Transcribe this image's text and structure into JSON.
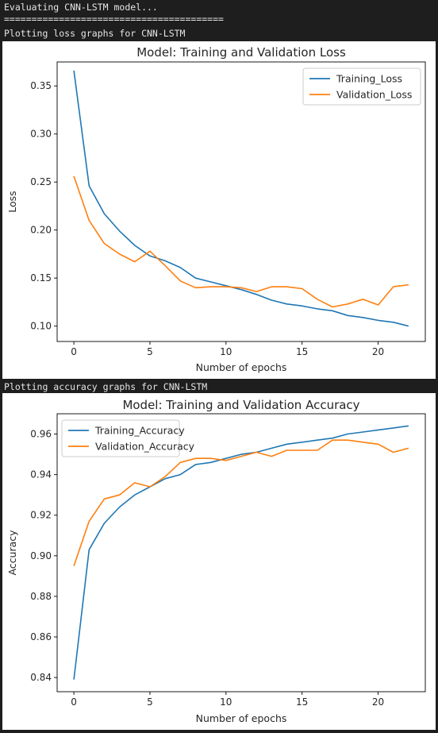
{
  "console": {
    "line1": "Evaluating CNN-LSTM model...",
    "line2": "========================================",
    "line3": "Plotting loss graphs for CNN-LSTM",
    "line4": "Plotting accuracy graphs for CNN-LSTM"
  },
  "chart_data": [
    {
      "type": "line",
      "title": "Model: Training and Validation Loss",
      "xlabel": "Number of epochs",
      "ylabel": "Loss",
      "xlim": [
        -1.1,
        23.1
      ],
      "ylim": [
        0.084,
        0.375
      ],
      "xticks": [
        0,
        5,
        10,
        15,
        20
      ],
      "yticks": [
        0.1,
        0.15,
        0.2,
        0.25,
        0.3,
        0.35
      ],
      "ytick_labels": [
        "0.10",
        "0.15",
        "0.20",
        "0.25",
        "0.30",
        "0.35"
      ],
      "legend": "top-right",
      "grid": false,
      "x": [
        0,
        1,
        2,
        3,
        4,
        5,
        6,
        7,
        8,
        9,
        10,
        11,
        12,
        13,
        14,
        15,
        16,
        17,
        18,
        19,
        20,
        21,
        22
      ],
      "series": [
        {
          "name": "Training_Loss",
          "color": "#1f77b4",
          "values": [
            0.366,
            0.246,
            0.217,
            0.199,
            0.184,
            0.173,
            0.168,
            0.161,
            0.15,
            0.146,
            0.142,
            0.138,
            0.133,
            0.127,
            0.123,
            0.121,
            0.118,
            0.116,
            0.111,
            0.109,
            0.106,
            0.104,
            0.1
          ]
        },
        {
          "name": "Validation_Loss",
          "color": "#ff7f0e",
          "values": [
            0.256,
            0.21,
            0.186,
            0.175,
            0.167,
            0.178,
            0.163,
            0.147,
            0.14,
            0.141,
            0.141,
            0.14,
            0.136,
            0.141,
            0.141,
            0.139,
            0.128,
            0.12,
            0.123,
            0.128,
            0.122,
            0.141,
            0.143
          ]
        }
      ]
    },
    {
      "type": "line",
      "title": "Model: Training and Validation Accuracy",
      "xlabel": "Number of epochs",
      "ylabel": "Accuracy",
      "xlim": [
        -1.1,
        23.1
      ],
      "ylim": [
        0.833,
        0.97
      ],
      "xticks": [
        0,
        5,
        10,
        15,
        20
      ],
      "yticks": [
        0.84,
        0.86,
        0.88,
        0.9,
        0.92,
        0.94,
        0.96
      ],
      "ytick_labels": [
        "0.84",
        "0.86",
        "0.88",
        "0.90",
        "0.92",
        "0.94",
        "0.96"
      ],
      "legend": "top-left",
      "grid": false,
      "x": [
        0,
        1,
        2,
        3,
        4,
        5,
        6,
        7,
        8,
        9,
        10,
        11,
        12,
        13,
        14,
        15,
        16,
        17,
        18,
        19,
        20,
        21,
        22
      ],
      "series": [
        {
          "name": "Training_Accuracy",
          "color": "#1f77b4",
          "values": [
            0.839,
            0.903,
            0.916,
            0.924,
            0.93,
            0.934,
            0.938,
            0.94,
            0.945,
            0.946,
            0.948,
            0.95,
            0.951,
            0.953,
            0.955,
            0.956,
            0.957,
            0.958,
            0.96,
            0.961,
            0.962,
            0.963,
            0.964
          ]
        },
        {
          "name": "Validation_Accuracy",
          "color": "#ff7f0e",
          "values": [
            0.895,
            0.917,
            0.928,
            0.93,
            0.936,
            0.934,
            0.939,
            0.946,
            0.948,
            0.948,
            0.947,
            0.949,
            0.951,
            0.949,
            0.952,
            0.952,
            0.952,
            0.957,
            0.957,
            0.956,
            0.955,
            0.951,
            0.953
          ]
        }
      ]
    }
  ]
}
